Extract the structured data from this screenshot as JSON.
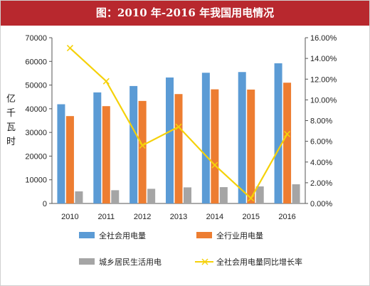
{
  "title": "图：2010 年-2016 年我国用电情况",
  "chart_data": {
    "type": "bar",
    "categories": [
      "2010",
      "2011",
      "2012",
      "2013",
      "2014",
      "2015",
      "2016"
    ],
    "ylabel_chars": [
      "亿",
      "千",
      "瓦",
      "时"
    ],
    "y_left": {
      "min": 0,
      "max": 70000,
      "step": 10000,
      "ticks": [
        "0",
        "10000",
        "20000",
        "30000",
        "40000",
        "50000",
        "60000",
        "70000"
      ]
    },
    "y_right": {
      "min": 0,
      "max": 16,
      "step": 2,
      "ticks": [
        "0.00%",
        "2.00%",
        "4.00%",
        "6.00%",
        "8.00%",
        "10.00%",
        "12.00%",
        "14.00%",
        "16.00%"
      ]
    },
    "series": [
      {
        "name": "全社会用电量",
        "type": "bar",
        "color": "#5b9bd5",
        "values": [
          41900,
          46900,
          49600,
          53200,
          55200,
          55500,
          59200
        ]
      },
      {
        "name": "全行业用电量",
        "type": "bar",
        "color": "#ed7d31",
        "values": [
          36900,
          41100,
          43300,
          46200,
          48200,
          48100,
          51000
        ]
      },
      {
        "name": "城乡居民生活用电",
        "type": "bar",
        "color": "#a5a5a5",
        "values": [
          5100,
          5600,
          6200,
          6800,
          6900,
          7200,
          8100
        ]
      },
      {
        "name": "全社会用电量同比增长率",
        "type": "line",
        "axis": "right",
        "color": "#f5d10a",
        "values": [
          15.0,
          11.8,
          5.6,
          7.4,
          3.7,
          0.5,
          6.7
        ]
      }
    ],
    "legend_position": "bottom",
    "grid": false
  }
}
